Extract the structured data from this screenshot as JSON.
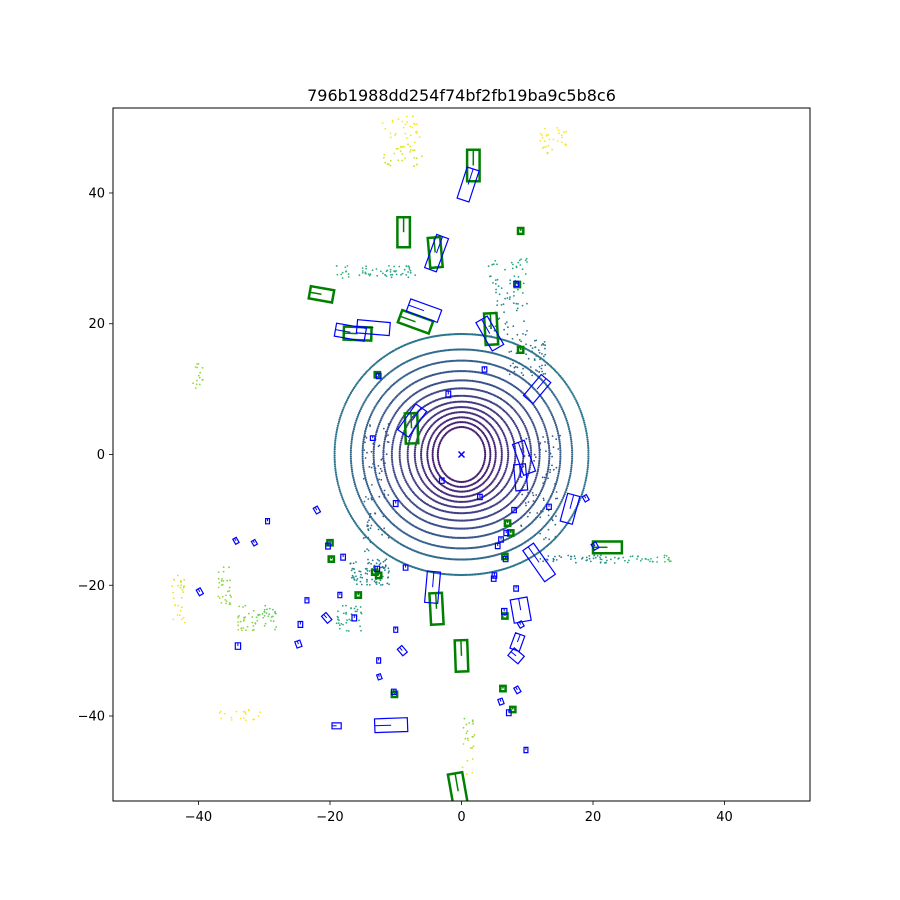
{
  "chart_data": {
    "type": "scatter",
    "title": "796b1988dd254f74bf2fb19ba9c5b8c6",
    "xlabel": "",
    "ylabel": "",
    "xlim": [
      -53,
      53
    ],
    "ylim": [
      -53,
      53
    ],
    "xticks": [
      -40,
      -20,
      0,
      20,
      40
    ],
    "yticks": [
      -40,
      -20,
      0,
      20,
      40
    ],
    "xtick_labels": [
      "−40",
      "−20",
      "0",
      "20",
      "40"
    ],
    "ytick_labels": [
      "−40",
      "−20",
      "0",
      "20",
      "40"
    ],
    "grid": false,
    "legend": "none",
    "colormap": "viridis",
    "colors": {
      "ground_truth_box": "#008000",
      "prediction_box": "#0000ff",
      "ego_marker": "#0000ff"
    },
    "ground_truth_boxes": [
      {
        "cx": 1.8,
        "cy": 44.2,
        "w": 1.9,
        "l": 4.8,
        "yaw_deg": 0
      },
      {
        "cx": -8.8,
        "cy": 34.0,
        "w": 1.9,
        "l": 4.6,
        "yaw_deg": 0
      },
      {
        "cx": -4.0,
        "cy": 30.9,
        "w": 1.9,
        "l": 4.6,
        "yaw_deg": 5
      },
      {
        "cx": -21.3,
        "cy": 24.5,
        "w": 1.9,
        "l": 3.6,
        "yaw_deg": 80
      },
      {
        "cx": -7.0,
        "cy": 20.3,
        "w": 2.0,
        "l": 5.0,
        "yaw_deg": 70
      },
      {
        "cx": 4.5,
        "cy": 19.2,
        "w": 1.9,
        "l": 4.8,
        "yaw_deg": 3
      },
      {
        "cx": -15.8,
        "cy": 18.5,
        "w": 2.0,
        "l": 4.2,
        "yaw_deg": 88
      },
      {
        "cx": -7.6,
        "cy": 4.0,
        "w": 1.9,
        "l": 4.6,
        "yaw_deg": 2
      },
      {
        "cx": 22.2,
        "cy": -14.2,
        "w": 1.8,
        "l": 4.4,
        "yaw_deg": 90
      },
      {
        "cx": -3.8,
        "cy": -23.6,
        "w": 1.9,
        "l": 4.8,
        "yaw_deg": 3
      },
      {
        "cx": 0.0,
        "cy": -30.8,
        "w": 1.9,
        "l": 4.8,
        "yaw_deg": 2
      },
      {
        "cx": -0.5,
        "cy": -51.5,
        "w": 2.2,
        "l": 5.5,
        "yaw_deg": 10
      },
      {
        "cx": 9.0,
        "cy": 34.2,
        "w": 0.8,
        "l": 0.9,
        "yaw_deg": 0
      },
      {
        "cx": 8.5,
        "cy": 26.0,
        "w": 0.8,
        "l": 0.8,
        "yaw_deg": 0
      },
      {
        "cx": 9.0,
        "cy": 16.0,
        "w": 0.8,
        "l": 0.9,
        "yaw_deg": 0
      },
      {
        "cx": -12.8,
        "cy": 12.2,
        "w": 0.8,
        "l": 0.8,
        "yaw_deg": 0
      },
      {
        "cx": 7.0,
        "cy": -10.5,
        "w": 0.8,
        "l": 0.8,
        "yaw_deg": 0
      },
      {
        "cx": 7.5,
        "cy": -12.0,
        "w": 0.8,
        "l": 0.8,
        "yaw_deg": 0
      },
      {
        "cx": 6.6,
        "cy": -15.6,
        "w": 0.8,
        "l": 0.8,
        "yaw_deg": 0
      },
      {
        "cx": -20.0,
        "cy": -13.5,
        "w": 0.8,
        "l": 0.8,
        "yaw_deg": 0
      },
      {
        "cx": -19.8,
        "cy": -16.0,
        "w": 0.8,
        "l": 0.8,
        "yaw_deg": 0
      },
      {
        "cx": -13.2,
        "cy": -18.0,
        "w": 0.8,
        "l": 0.8,
        "yaw_deg": 0
      },
      {
        "cx": -12.6,
        "cy": -18.5,
        "w": 0.8,
        "l": 0.8,
        "yaw_deg": 0
      },
      {
        "cx": -15.7,
        "cy": -21.5,
        "w": 0.8,
        "l": 0.8,
        "yaw_deg": 0
      },
      {
        "cx": 6.6,
        "cy": -24.7,
        "w": 0.8,
        "l": 0.8,
        "yaw_deg": 0
      },
      {
        "cx": -10.2,
        "cy": -36.7,
        "w": 0.8,
        "l": 0.8,
        "yaw_deg": 0
      },
      {
        "cx": 6.3,
        "cy": -35.8,
        "w": 0.8,
        "l": 0.8,
        "yaw_deg": 0
      },
      {
        "cx": 7.8,
        "cy": -39.0,
        "w": 0.8,
        "l": 0.8,
        "yaw_deg": 0
      }
    ],
    "prediction_boxes": [
      {
        "cx": 1.0,
        "cy": 41.3,
        "w": 1.9,
        "l": 5.0,
        "yaw_deg": -18
      },
      {
        "cx": -3.8,
        "cy": 30.8,
        "w": 1.9,
        "l": 5.4,
        "yaw_deg": -20
      },
      {
        "cx": -5.7,
        "cy": 22.0,
        "w": 2.0,
        "l": 5.0,
        "yaw_deg": 70
      },
      {
        "cx": -13.4,
        "cy": 19.4,
        "w": 2.0,
        "l": 5.0,
        "yaw_deg": 85
      },
      {
        "cx": -16.9,
        "cy": 18.7,
        "w": 2.0,
        "l": 4.6,
        "yaw_deg": 80
      },
      {
        "cx": 4.3,
        "cy": 18.5,
        "w": 2.0,
        "l": 5.0,
        "yaw_deg": 30
      },
      {
        "cx": 11.5,
        "cy": 10.0,
        "w": 1.9,
        "l": 4.2,
        "yaw_deg": -40
      },
      {
        "cx": -7.5,
        "cy": 5.2,
        "w": 2.0,
        "l": 4.8,
        "yaw_deg": -35
      },
      {
        "cx": 9.5,
        "cy": -0.5,
        "w": 1.9,
        "l": 5.0,
        "yaw_deg": 20
      },
      {
        "cx": 9.0,
        "cy": -3.5,
        "w": 1.8,
        "l": 4.0,
        "yaw_deg": 5
      },
      {
        "cx": 16.5,
        "cy": -8.3,
        "w": 1.9,
        "l": 4.4,
        "yaw_deg": -15
      },
      {
        "cx": 11.8,
        "cy": -16.5,
        "w": 2.0,
        "l": 5.8,
        "yaw_deg": 35
      },
      {
        "cx": -4.4,
        "cy": -20.3,
        "w": 2.0,
        "l": 4.8,
        "yaw_deg": -5
      },
      {
        "cx": 9.0,
        "cy": -23.8,
        "w": 2.6,
        "l": 3.6,
        "yaw_deg": 10
      },
      {
        "cx": -10.7,
        "cy": -41.4,
        "w": 2.1,
        "l": 5.0,
        "yaw_deg": 92
      },
      {
        "cx": 8.5,
        "cy": -28.7,
        "w": 1.5,
        "l": 2.5,
        "yaw_deg": -20
      },
      {
        "cx": 8.3,
        "cy": -30.8,
        "w": 1.5,
        "l": 2.0,
        "yaw_deg": 50
      },
      {
        "cx": -19.0,
        "cy": -41.5,
        "w": 0.9,
        "l": 1.4,
        "yaw_deg": 90
      },
      {
        "cx": 8.3,
        "cy": 26.1,
        "w": 0.7,
        "l": 0.8,
        "yaw_deg": 0
      },
      {
        "cx": -12.6,
        "cy": 12.0,
        "w": 0.7,
        "l": 0.8,
        "yaw_deg": 0
      },
      {
        "cx": 3.5,
        "cy": 13.0,
        "w": 0.7,
        "l": 0.8,
        "yaw_deg": 0
      },
      {
        "cx": -2.0,
        "cy": 9.2,
        "w": 0.7,
        "l": 1.0,
        "yaw_deg": 0
      },
      {
        "cx": -13.5,
        "cy": 2.5,
        "w": 0.7,
        "l": 0.7,
        "yaw_deg": 0
      },
      {
        "cx": -10.0,
        "cy": -7.5,
        "w": 0.7,
        "l": 0.9,
        "yaw_deg": 0
      },
      {
        "cx": -3.0,
        "cy": -4.0,
        "w": 0.7,
        "l": 0.8,
        "yaw_deg": 0
      },
      {
        "cx": 2.8,
        "cy": -6.5,
        "w": 0.7,
        "l": 0.8,
        "yaw_deg": 0
      },
      {
        "cx": 6.8,
        "cy": -12.0,
        "w": 0.7,
        "l": 0.8,
        "yaw_deg": 0
      },
      {
        "cx": 8.0,
        "cy": -8.5,
        "w": 0.7,
        "l": 0.8,
        "yaw_deg": 0
      },
      {
        "cx": 6.0,
        "cy": -13.0,
        "w": 0.7,
        "l": 0.8,
        "yaw_deg": 0
      },
      {
        "cx": 5.5,
        "cy": -14.0,
        "w": 0.7,
        "l": 0.8,
        "yaw_deg": 0
      },
      {
        "cx": 18.9,
        "cy": -6.7,
        "w": 0.7,
        "l": 0.9,
        "yaw_deg": 30
      },
      {
        "cx": 13.3,
        "cy": -8.0,
        "w": 0.7,
        "l": 0.8,
        "yaw_deg": 0
      },
      {
        "cx": 20.3,
        "cy": -14.0,
        "w": 0.8,
        "l": 1.0,
        "yaw_deg": 30
      },
      {
        "cx": 8.3,
        "cy": -20.5,
        "w": 0.7,
        "l": 0.8,
        "yaw_deg": 0
      },
      {
        "cx": 6.7,
        "cy": -16.0,
        "w": 0.7,
        "l": 0.8,
        "yaw_deg": 0
      },
      {
        "cx": 5.0,
        "cy": -18.5,
        "w": 0.7,
        "l": 0.8,
        "yaw_deg": 0
      },
      {
        "cx": 6.5,
        "cy": -24.0,
        "w": 0.8,
        "l": 0.9,
        "yaw_deg": 0
      },
      {
        "cx": 9.0,
        "cy": -26.0,
        "w": 0.7,
        "l": 0.9,
        "yaw_deg": 30
      },
      {
        "cx": -22.0,
        "cy": -8.5,
        "w": 0.7,
        "l": 1.0,
        "yaw_deg": 30
      },
      {
        "cx": -29.5,
        "cy": -10.2,
        "w": 0.6,
        "l": 0.8,
        "yaw_deg": 0
      },
      {
        "cx": -34.3,
        "cy": -13.2,
        "w": 0.6,
        "l": 0.9,
        "yaw_deg": 30
      },
      {
        "cx": -31.5,
        "cy": -13.5,
        "w": 0.6,
        "l": 0.8,
        "yaw_deg": 30
      },
      {
        "cx": -20.3,
        "cy": -14.0,
        "w": 0.7,
        "l": 0.9,
        "yaw_deg": 0
      },
      {
        "cx": -18.0,
        "cy": -15.7,
        "w": 0.7,
        "l": 0.9,
        "yaw_deg": 0
      },
      {
        "cx": -12.8,
        "cy": -17.5,
        "w": 0.7,
        "l": 0.8,
        "yaw_deg": 0
      },
      {
        "cx": -8.5,
        "cy": -17.3,
        "w": 0.7,
        "l": 0.8,
        "yaw_deg": 0
      },
      {
        "cx": 4.9,
        "cy": -19.0,
        "w": 0.7,
        "l": 0.8,
        "yaw_deg": 0
      },
      {
        "cx": -39.8,
        "cy": -21.0,
        "w": 0.7,
        "l": 1.0,
        "yaw_deg": 30
      },
      {
        "cx": -23.5,
        "cy": -22.3,
        "w": 0.6,
        "l": 0.8,
        "yaw_deg": 0
      },
      {
        "cx": -18.5,
        "cy": -21.5,
        "w": 0.6,
        "l": 0.8,
        "yaw_deg": 0
      },
      {
        "cx": -20.5,
        "cy": -25.0,
        "w": 0.9,
        "l": 1.4,
        "yaw_deg": 40
      },
      {
        "cx": -16.3,
        "cy": -25.0,
        "w": 0.7,
        "l": 0.9,
        "yaw_deg": 0
      },
      {
        "cx": -24.5,
        "cy": -26.0,
        "w": 0.7,
        "l": 0.9,
        "yaw_deg": 0
      },
      {
        "cx": -10.0,
        "cy": -26.8,
        "w": 0.6,
        "l": 0.8,
        "yaw_deg": 0
      },
      {
        "cx": -24.8,
        "cy": -29.0,
        "w": 0.8,
        "l": 1.0,
        "yaw_deg": 20
      },
      {
        "cx": -34.0,
        "cy": -29.3,
        "w": 0.8,
        "l": 1.0,
        "yaw_deg": 0
      },
      {
        "cx": -9.0,
        "cy": -30.0,
        "w": 0.9,
        "l": 1.3,
        "yaw_deg": 40
      },
      {
        "cx": -12.6,
        "cy": -31.5,
        "w": 0.6,
        "l": 0.8,
        "yaw_deg": 0
      },
      {
        "cx": -12.5,
        "cy": -34.0,
        "w": 0.6,
        "l": 0.8,
        "yaw_deg": 20
      },
      {
        "cx": -10.3,
        "cy": -36.3,
        "w": 0.7,
        "l": 0.8,
        "yaw_deg": 0
      },
      {
        "cx": 8.5,
        "cy": -36.0,
        "w": 0.7,
        "l": 1.0,
        "yaw_deg": 30
      },
      {
        "cx": 6.0,
        "cy": -37.8,
        "w": 0.7,
        "l": 0.9,
        "yaw_deg": 20
      },
      {
        "cx": 7.2,
        "cy": -39.5,
        "w": 0.7,
        "l": 0.9,
        "yaw_deg": 0
      },
      {
        "cx": 9.8,
        "cy": -45.2,
        "w": 0.6,
        "l": 0.8,
        "yaw_deg": 0
      }
    ],
    "ego": {
      "x": 0,
      "y": 0
    }
  }
}
